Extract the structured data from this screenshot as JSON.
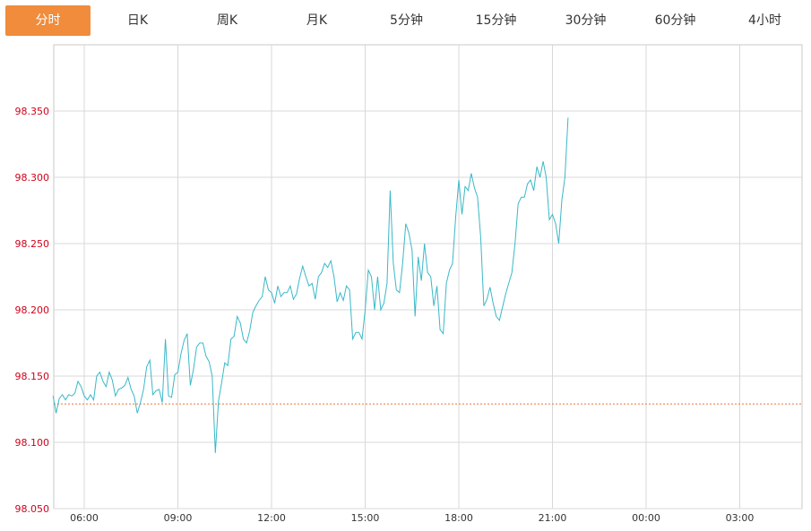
{
  "tabs": [
    {
      "label": "分时",
      "active": true
    },
    {
      "label": "日K",
      "active": false
    },
    {
      "label": "周K",
      "active": false
    },
    {
      "label": "月K",
      "active": false
    },
    {
      "label": "5分钟",
      "active": false
    },
    {
      "label": "15分钟",
      "active": false
    },
    {
      "label": "30分钟",
      "active": false
    },
    {
      "label": "60分钟",
      "active": false
    },
    {
      "label": "4小时",
      "active": false
    }
  ],
  "colors": {
    "active_tab": "#f08c3c",
    "line": "#3ab8c8",
    "reference_line": "#e8763a",
    "y_tick_text": "#d0021b",
    "grid": "#d8d8d8"
  },
  "chart_data": {
    "type": "line",
    "title": "",
    "xlabel": "",
    "ylabel": "",
    "ylim": [
      98.05,
      98.4
    ],
    "y_ticks": [
      "98.350",
      "98.300",
      "98.250",
      "98.200",
      "98.150",
      "98.100",
      "98.050"
    ],
    "x_ticks": [
      "06:00",
      "09:00",
      "12:00",
      "15:00",
      "18:00",
      "21:00",
      "00:00",
      "03:00"
    ],
    "grid": true,
    "reference_line": 98.129,
    "series": [
      {
        "values": [
          [
            "05:00",
            98.135
          ],
          [
            "05:06",
            98.122
          ],
          [
            "05:12",
            98.133
          ],
          [
            "05:18",
            98.136
          ],
          [
            "05:24",
            98.132
          ],
          [
            "05:30",
            98.136
          ],
          [
            "05:36",
            98.135
          ],
          [
            "05:42",
            98.137
          ],
          [
            "05:48",
            98.146
          ],
          [
            "05:54",
            98.142
          ],
          [
            "06:00",
            98.135
          ],
          [
            "06:06",
            98.132
          ],
          [
            "06:12",
            98.136
          ],
          [
            "06:18",
            98.132
          ],
          [
            "06:24",
            98.15
          ],
          [
            "06:30",
            98.153
          ],
          [
            "06:36",
            98.146
          ],
          [
            "06:42",
            98.142
          ],
          [
            "06:48",
            98.153
          ],
          [
            "06:54",
            98.147
          ],
          [
            "07:00",
            98.135
          ],
          [
            "07:06",
            98.14
          ],
          [
            "07:12",
            98.141
          ],
          [
            "07:18",
            98.143
          ],
          [
            "07:24",
            98.149
          ],
          [
            "07:30",
            98.14
          ],
          [
            "07:36",
            98.135
          ],
          [
            "07:42",
            98.122
          ],
          [
            "07:48",
            98.13
          ],
          [
            "07:54",
            98.14
          ],
          [
            "08:00",
            98.157
          ],
          [
            "08:06",
            98.162
          ],
          [
            "08:12",
            98.136
          ],
          [
            "08:18",
            98.139
          ],
          [
            "08:24",
            98.14
          ],
          [
            "08:30",
            98.13
          ],
          [
            "08:36",
            98.178
          ],
          [
            "08:42",
            98.135
          ],
          [
            "08:48",
            98.134
          ],
          [
            "08:54",
            98.151
          ],
          [
            "09:00",
            98.153
          ],
          [
            "09:06",
            98.167
          ],
          [
            "09:12",
            98.177
          ],
          [
            "09:18",
            98.182
          ],
          [
            "09:24",
            98.143
          ],
          [
            "09:30",
            98.155
          ],
          [
            "09:36",
            98.172
          ],
          [
            "09:42",
            98.175
          ],
          [
            "09:48",
            98.175
          ],
          [
            "09:54",
            98.165
          ],
          [
            "10:00",
            98.161
          ],
          [
            "10:06",
            98.15
          ],
          [
            "10:12",
            98.092
          ],
          [
            "10:18",
            98.131
          ],
          [
            "10:24",
            98.145
          ],
          [
            "10:30",
            98.16
          ],
          [
            "10:36",
            98.158
          ],
          [
            "10:42",
            98.178
          ],
          [
            "10:48",
            98.18
          ],
          [
            "10:54",
            98.195
          ],
          [
            "11:00",
            98.19
          ],
          [
            "11:06",
            98.178
          ],
          [
            "11:12",
            98.175
          ],
          [
            "11:18",
            98.184
          ],
          [
            "11:24",
            98.198
          ],
          [
            "11:30",
            98.203
          ],
          [
            "11:36",
            98.207
          ],
          [
            "11:42",
            98.21
          ],
          [
            "11:48",
            98.225
          ],
          [
            "11:54",
            98.215
          ],
          [
            "12:00",
            98.213
          ],
          [
            "12:06",
            98.205
          ],
          [
            "12:12",
            98.218
          ],
          [
            "12:18",
            98.21
          ],
          [
            "12:24",
            98.213
          ],
          [
            "12:30",
            98.213
          ],
          [
            "12:36",
            98.218
          ],
          [
            "12:42",
            98.208
          ],
          [
            "12:48",
            98.212
          ],
          [
            "12:54",
            98.224
          ],
          [
            "13:00",
            98.233
          ],
          [
            "13:06",
            98.225
          ],
          [
            "13:12",
            98.218
          ],
          [
            "13:18",
            98.22
          ],
          [
            "13:24",
            98.208
          ],
          [
            "13:30",
            98.225
          ],
          [
            "13:36",
            98.228
          ],
          [
            "13:42",
            98.235
          ],
          [
            "13:48",
            98.232
          ],
          [
            "13:54",
            98.237
          ],
          [
            "14:00",
            98.225
          ],
          [
            "14:06",
            98.206
          ],
          [
            "14:12",
            98.213
          ],
          [
            "14:18",
            98.207
          ],
          [
            "14:24",
            98.218
          ],
          [
            "14:30",
            98.215
          ],
          [
            "14:36",
            98.178
          ],
          [
            "14:42",
            98.183
          ],
          [
            "14:48",
            98.183
          ],
          [
            "14:54",
            98.178
          ],
          [
            "15:00",
            98.2
          ],
          [
            "15:06",
            98.23
          ],
          [
            "15:12",
            98.225
          ],
          [
            "15:18",
            98.2
          ],
          [
            "15:24",
            98.225
          ],
          [
            "15:30",
            98.2
          ],
          [
            "15:36",
            98.205
          ],
          [
            "15:42",
            98.22
          ],
          [
            "15:48",
            98.29
          ],
          [
            "15:54",
            98.235
          ],
          [
            "16:00",
            98.215
          ],
          [
            "16:06",
            98.213
          ],
          [
            "16:12",
            98.235
          ],
          [
            "16:18",
            98.265
          ],
          [
            "16:24",
            98.258
          ],
          [
            "16:30",
            98.245
          ],
          [
            "16:36",
            98.195
          ],
          [
            "16:42",
            98.24
          ],
          [
            "16:48",
            98.222
          ],
          [
            "16:54",
            98.25
          ],
          [
            "17:00",
            98.228
          ],
          [
            "17:06",
            98.225
          ],
          [
            "17:12",
            98.203
          ],
          [
            "17:18",
            98.218
          ],
          [
            "17:24",
            98.185
          ],
          [
            "17:30",
            98.182
          ],
          [
            "17:36",
            98.22
          ],
          [
            "17:42",
            98.23
          ],
          [
            "17:48",
            98.235
          ],
          [
            "17:54",
            98.27
          ],
          [
            "18:00",
            98.298
          ],
          [
            "18:06",
            98.272
          ],
          [
            "18:12",
            98.293
          ],
          [
            "18:18",
            98.29
          ],
          [
            "18:24",
            98.303
          ],
          [
            "18:30",
            98.292
          ],
          [
            "18:36",
            98.285
          ],
          [
            "18:42",
            98.255
          ],
          [
            "18:48",
            98.203
          ],
          [
            "18:54",
            98.208
          ],
          [
            "19:00",
            98.217
          ],
          [
            "19:06",
            98.205
          ],
          [
            "19:12",
            98.195
          ],
          [
            "19:18",
            98.192
          ],
          [
            "19:24",
            98.202
          ],
          [
            "19:30",
            98.212
          ],
          [
            "19:36",
            98.22
          ],
          [
            "19:42",
            98.228
          ],
          [
            "19:48",
            98.25
          ],
          [
            "19:54",
            98.28
          ],
          [
            "20:00",
            98.285
          ],
          [
            "20:06",
            98.285
          ],
          [
            "20:12",
            98.295
          ],
          [
            "20:18",
            98.298
          ],
          [
            "20:24",
            98.29
          ],
          [
            "20:30",
            98.308
          ],
          [
            "20:36",
            98.3
          ],
          [
            "20:42",
            98.312
          ],
          [
            "20:48",
            98.3
          ],
          [
            "20:54",
            98.268
          ],
          [
            "21:00",
            98.272
          ],
          [
            "21:06",
            98.265
          ],
          [
            "21:12",
            98.25
          ],
          [
            "21:18",
            98.283
          ],
          [
            "21:24",
            98.3
          ],
          [
            "21:30",
            98.345
          ]
        ]
      }
    ]
  }
}
